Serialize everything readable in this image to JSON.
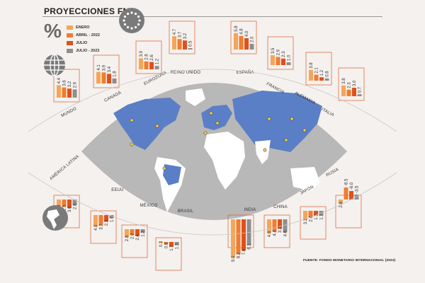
{
  "title": "PROYECCIONES FMI",
  "percent_sign": "%",
  "source": "FUENTE: FONDO MONETARIO INTERNACIONAL (2022)",
  "colors": {
    "enero": "#f5a55a",
    "abril": "#f07c30",
    "julio": "#e0501c",
    "julio2023": "#8e8e8e",
    "map_bg": "#b8b8b8",
    "land": "#ffffff",
    "highlight": "#5b7fc6"
  },
  "legend": [
    {
      "label": "ENERO",
      "color": "#f5a55a"
    },
    {
      "label": "ABRIL",
      "color": "#f07c30"
    },
    {
      "label": "2022",
      "color": "#f07c30"
    },
    {
      "label": "JULIO",
      "color": "#e0501c"
    },
    {
      "label": "JULIO - 2023",
      "color": "#8e8e8e"
    }
  ],
  "icons": [
    "globe-icon",
    "eu-stars-icon",
    "americas-globe-icon"
  ],
  "chart_data": {
    "type": "bar",
    "series_names": [
      "Enero 2022",
      "Abril 2022",
      "Julio 2022",
      "Julio 2023"
    ],
    "countries": [
      {
        "name": "MUNDO",
        "values": [
          4.4,
          3.6,
          3.2,
          2.9
        ]
      },
      {
        "name": "CANADÁ",
        "values": [
          4.1,
          3.9,
          3.4,
          1.8
        ]
      },
      {
        "name": "EUROZONA",
        "values": [
          3.9,
          2.8,
          2.6,
          1.2
        ]
      },
      {
        "name": "REINO UNIDO",
        "values": [
          4.7,
          3.7,
          3.2,
          0.5
        ]
      },
      {
        "name": "ESPAÑA",
        "values": [
          5.8,
          4.8,
          4.0,
          2.0
        ]
      },
      {
        "name": "FRANCIA",
        "values": [
          3.5,
          2.9,
          2.3,
          1.0
        ]
      },
      {
        "name": "ALEMANIA",
        "values": [
          3.8,
          2.1,
          1.2,
          0.8
        ]
      },
      {
        "name": "ITALIA",
        "values": [
          3.8,
          2.3,
          3.0,
          0.7
        ]
      },
      {
        "name": "AMÉRICA LATINA",
        "values": [
          2.4,
          2.5,
          3.0,
          2.0
        ]
      },
      {
        "name": "EEUU",
        "values": [
          4.0,
          3.7,
          2.3,
          1.0
        ]
      },
      {
        "name": "MÉXICO",
        "values": [
          2.8,
          2.0,
          2.4,
          1.2
        ]
      },
      {
        "name": "BRASIL",
        "values": [
          0.3,
          0.8,
          1.7,
          1.1
        ]
      },
      {
        "name": "INDIA",
        "values": [
          9.0,
          8.2,
          7.4,
          6.1
        ]
      },
      {
        "name": "CHINA",
        "values": [
          4.8,
          4.4,
          3.3,
          4.6
        ]
      },
      {
        "name": "JAPÓN",
        "values": [
          3.3,
          2.4,
          1.7,
          1.7
        ]
      },
      {
        "name": "RUSIA",
        "values": [
          2.8,
          -8.5,
          -6.0,
          -3.5
        ]
      }
    ]
  }
}
